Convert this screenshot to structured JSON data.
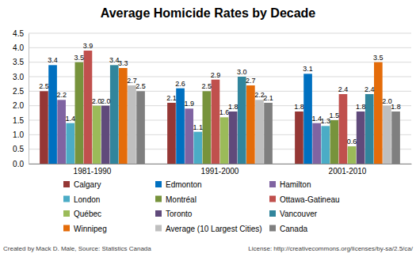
{
  "chart_data": {
    "type": "bar",
    "title": "Average Homicide Rates by Decade",
    "categories": [
      "1981-1990",
      "1991-2000",
      "2001-2010"
    ],
    "ylim": [
      0,
      4.5
    ],
    "yticks": [
      {
        "value": 0,
        "label": "0.0"
      },
      0.5,
      {
        "value": 1,
        "label": "1.0"
      },
      1.5,
      {
        "value": 2,
        "label": "2.0"
      },
      2.5,
      {
        "value": 3,
        "label": "3.0"
      },
      3.5,
      {
        "value": 4,
        "label": "4.0"
      },
      4.5
    ],
    "grid": true,
    "data_labels": true,
    "legend": "bottom",
    "annotations": [
      "Created by Mack D. Male, Source: Statistics Canada",
      "License: http://creativecommons.org/licenses/by-sa/2.5/ca/"
    ],
    "series": [
      {
        "name": "Calgary",
        "color": "#953735",
        "values": [
          2.5,
          2.1,
          1.8
        ],
        "value_labels": [
          "2.5",
          "2.1",
          "1.8"
        ]
      },
      {
        "name": "Edmonton",
        "color": "#0070c0",
        "values": [
          3.4,
          2.6,
          3.1
        ],
        "value_labels": [
          "3.4",
          "2.6",
          "3.1"
        ]
      },
      {
        "name": "Hamilton",
        "color": "#8064a2",
        "values": [
          2.2,
          1.9,
          1.4
        ],
        "value_labels": [
          "2.2",
          "1.9",
          "1.4"
        ]
      },
      {
        "name": "London",
        "color": "#4bacc6",
        "values": [
          1.4,
          1.1,
          1.3
        ],
        "value_labels": [
          "1.4",
          "1.1",
          "1.3"
        ]
      },
      {
        "name": "Montréal",
        "color": "#77933c",
        "values": [
          3.5,
          2.5,
          1.5
        ],
        "value_labels": [
          "3.5",
          "2.5",
          "1.5"
        ]
      },
      {
        "name": "Ottawa-Gatineau",
        "color": "#c0504d",
        "values": [
          3.9,
          2.9,
          2.4
        ],
        "value_labels": [
          "3.9",
          "2.9",
          "2.4"
        ]
      },
      {
        "name": "Québec",
        "color": "#9bbb59",
        "values": [
          2.0,
          1.6,
          0.6
        ],
        "value_labels": [
          "2.0",
          "1.6",
          "0.6"
        ]
      },
      {
        "name": "Toronto",
        "color": "#604a7b",
        "values": [
          2.0,
          1.8,
          1.8
        ],
        "value_labels": [
          "2.0",
          "1.8",
          "1.8"
        ]
      },
      {
        "name": "Vancouver",
        "color": "#31859c",
        "values": [
          3.4,
          3.0,
          2.4
        ],
        "value_labels": [
          "3.4",
          "3.0",
          "2.4"
        ]
      },
      {
        "name": "Winnipeg",
        "color": "#e46c0a",
        "values": [
          3.3,
          2.7,
          3.5
        ],
        "value_labels": [
          "3.3",
          "2.7",
          "3.5"
        ]
      },
      {
        "name": "Average (10 Largest Cities)",
        "color": "#bfbfbf",
        "values": [
          2.7,
          2.2,
          2.0
        ],
        "value_labels": [
          "2.7",
          "2.2",
          "2.0"
        ]
      },
      {
        "name": "Canada",
        "color": "#7f7f7f",
        "values": [
          2.5,
          2.1,
          1.8
        ],
        "value_labels": [
          "2.5",
          "2.1",
          "1.8"
        ]
      }
    ]
  }
}
